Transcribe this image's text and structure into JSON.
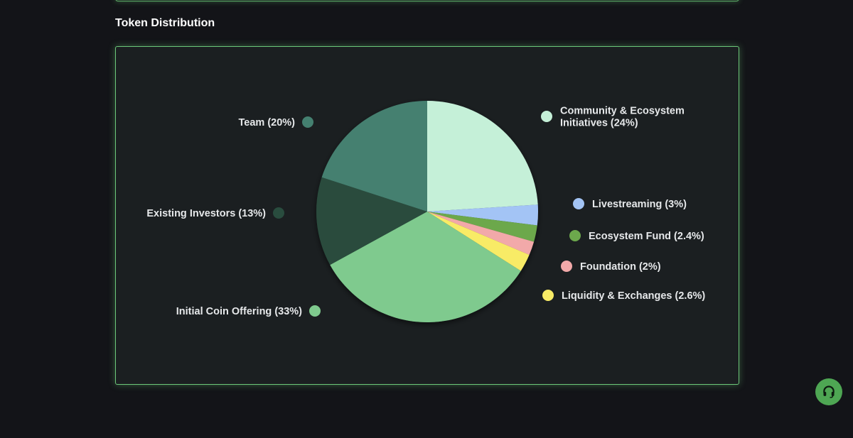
{
  "section": {
    "title": "Token Distribution"
  },
  "support": {
    "icon": "headset-icon"
  },
  "chart_data": {
    "type": "pie",
    "title": "Token Distribution",
    "start_angle_deg": 0,
    "direction": "clockwise",
    "slices": [
      {
        "name": "Community & Ecosystem Initiatives",
        "lines": [
          "Community & Ecosystem",
          "Initiatives (24%)"
        ],
        "value": 24,
        "color": "#c5f0d8"
      },
      {
        "name": "Livestreaming",
        "lines": [
          "Livestreaming (3%)"
        ],
        "value": 3,
        "color": "#a3c4f5"
      },
      {
        "name": "Ecosystem Fund",
        "lines": [
          "Ecosystem Fund (2.4%)"
        ],
        "value": 2.4,
        "color": "#6ca84c"
      },
      {
        "name": "Foundation",
        "lines": [
          "Foundation (2%)"
        ],
        "value": 2,
        "color": "#f2a9a9"
      },
      {
        "name": "Liquidity & Exchanges",
        "lines": [
          "Liquidity & Exchanges (2.6%)"
        ],
        "value": 2.6,
        "color": "#f8eb66"
      },
      {
        "name": "Initial Coin Offering",
        "lines": [
          "Initial Coin Offering (33%)"
        ],
        "value": 33,
        "color": "#7fca8e"
      },
      {
        "name": "Existing Investors",
        "lines": [
          "Existing Investors (13%)"
        ],
        "value": 13,
        "color": "#294c3e"
      },
      {
        "name": "Team",
        "lines": [
          "Team (20%)"
        ],
        "value": 20,
        "color": "#448070"
      }
    ]
  }
}
